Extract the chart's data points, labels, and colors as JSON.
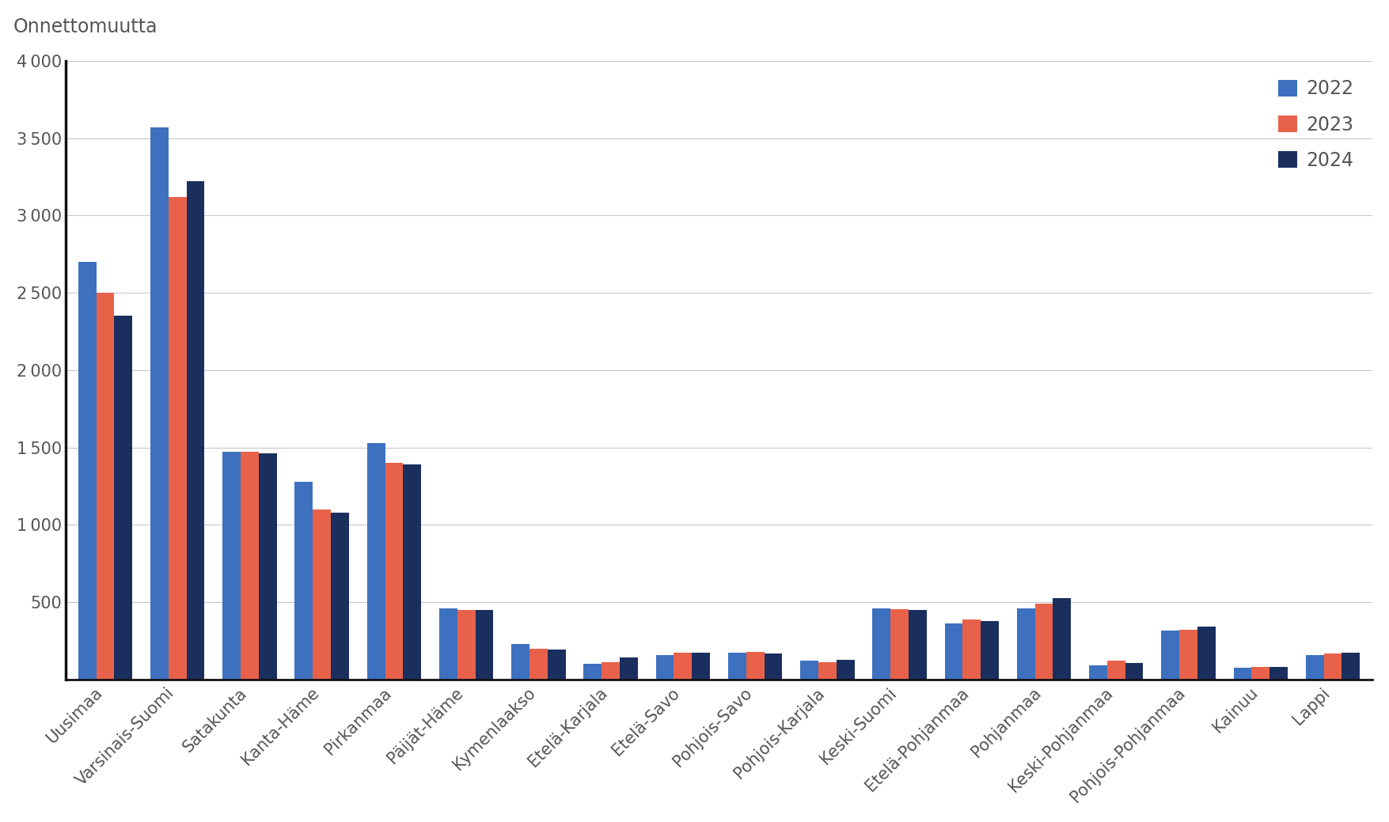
{
  "categories": [
    "Uusimaa",
    "Varsinais-Suomi",
    "Satakunta",
    "Kanta-Häme",
    "Pirkanmaa",
    "Päijät-Häme",
    "Kymenlaakso",
    "Etelä-Karjala",
    "Etelä-Savo",
    "Pohjois-Savo",
    "Pohjois-Karjala",
    "Keski-Suomi",
    "Etelä-Pohjanmaa",
    "Pohjanmaa",
    "Keski-Pohjanmaa",
    "Pohjois-Pohjanmaa",
    "Kainuu",
    "Lappi"
  ],
  "series": {
    "2022": [
      2700,
      3570,
      1470,
      1280,
      1530,
      460,
      230,
      100,
      155,
      175,
      120,
      460,
      360,
      460,
      90,
      315,
      75,
      155
    ],
    "2023": [
      2500,
      3120,
      1470,
      1100,
      1400,
      450,
      200,
      110,
      175,
      180,
      110,
      455,
      390,
      490,
      120,
      320,
      80,
      165
    ],
    "2024": [
      2350,
      3220,
      1460,
      1080,
      1390,
      450,
      195,
      140,
      175,
      165,
      125,
      450,
      375,
      525,
      105,
      340,
      80,
      175
    ]
  },
  "colors": {
    "2022": "#3d71c0",
    "2023": "#e8624a",
    "2024": "#1b2f5e"
  },
  "ylabel": "Onnettomuutta",
  "ylim": [
    0,
    4000
  ],
  "yticks": [
    500,
    1000,
    1500,
    2000,
    2500,
    3000,
    3500,
    4000
  ],
  "ytick_labels": [
    "500",
    "1 000",
    "1 500",
    "2 000",
    "2 500",
    "3 000",
    "3 500",
    "4 000"
  ],
  "background_color": "#ffffff",
  "grid_color": "#c8c8c8",
  "bar_width": 0.25,
  "legend_fontsize": 17,
  "tick_fontsize": 15,
  "ylabel_fontsize": 17,
  "text_color": "#555555"
}
